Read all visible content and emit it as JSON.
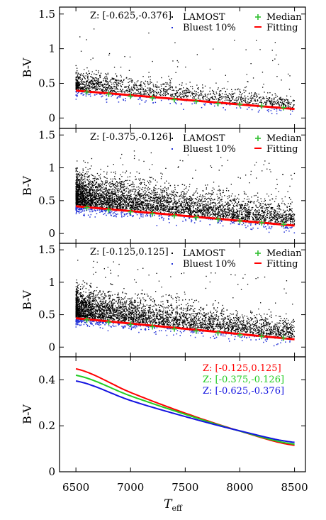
{
  "chart_data": [
    {
      "type": "scatter",
      "panel": 1,
      "annotation": "Z: [-0.625,-0.376]",
      "ylabel": "B-V",
      "xlim": [
        6350,
        8600
      ],
      "ylim": [
        -0.15,
        1.6
      ],
      "yticks": [
        0,
        0.5,
        1,
        1.5
      ],
      "ytick_labels": [
        "0",
        "0.5",
        "1",
        "1.5"
      ],
      "xticks": [
        6500,
        7000,
        7500,
        8000,
        8500
      ],
      "legend": {
        "placement": "top-right",
        "entries": [
          "LAMOST",
          "Bluest 10%",
          "Median",
          "Fitting"
        ]
      },
      "series": [
        {
          "name": "LAMOST",
          "color": "#000000",
          "density": 1400,
          "upper_spread": 0.12,
          "sparse_points": 60
        },
        {
          "name": "Bluest 10%",
          "color": "#1f2fd6",
          "density": 140
        },
        {
          "name": "Median",
          "color": "#2fbf2f",
          "x": [
            6600,
            6800,
            7000,
            7200,
            7400,
            7600,
            7800,
            8000,
            8200,
            8400
          ],
          "y": [
            0.375,
            0.345,
            0.315,
            0.29,
            0.265,
            0.24,
            0.21,
            0.195,
            0.175,
            0.15
          ]
        },
        {
          "name": "Fitting",
          "color": "#ff0000",
          "x_range": [
            6500,
            8500
          ],
          "y_range": [
            0.395,
            0.13
          ]
        }
      ]
    },
    {
      "type": "scatter",
      "panel": 2,
      "annotation": "Z: [-0.375,-0.126]",
      "ylabel": "B-V",
      "xlim": [
        6350,
        8600
      ],
      "ylim": [
        -0.15,
        1.6
      ],
      "yticks": [
        0,
        0.5,
        1,
        1.5
      ],
      "ytick_labels": [
        "0",
        "0.5",
        "1",
        "1.5"
      ],
      "xticks": [
        6500,
        7000,
        7500,
        8000,
        8500
      ],
      "legend": {
        "placement": "top-right",
        "entries": [
          "LAMOST",
          "Bluest 10%",
          "Median",
          "Fitting"
        ]
      },
      "series": [
        {
          "name": "LAMOST",
          "color": "#000000",
          "density": 4200,
          "upper_spread": 0.22,
          "sparse_points": 120
        },
        {
          "name": "Bluest 10%",
          "color": "#1f2fd6",
          "density": 320
        },
        {
          "name": "Median",
          "color": "#2fbf2f",
          "x": [
            6600,
            6800,
            7000,
            7200,
            7400,
            7600,
            7800,
            8000,
            8200,
            8400
          ],
          "y": [
            0.395,
            0.36,
            0.33,
            0.3,
            0.27,
            0.245,
            0.215,
            0.19,
            0.165,
            0.14
          ]
        },
        {
          "name": "Fitting",
          "color": "#ff0000",
          "x_range": [
            6500,
            8500
          ],
          "y_range": [
            0.415,
            0.12
          ]
        }
      ]
    },
    {
      "type": "scatter",
      "panel": 3,
      "annotation": "Z: [-0.125,0.125]",
      "ylabel": "B-V",
      "xlim": [
        6350,
        8600
      ],
      "ylim": [
        -0.15,
        1.6
      ],
      "yticks": [
        0,
        0.5,
        1,
        1.5
      ],
      "ytick_labels": [
        "0",
        "0.5",
        "1",
        "1.5"
      ],
      "xticks": [
        6500,
        7000,
        7500,
        8000,
        8500
      ],
      "legend": {
        "placement": "top-right",
        "entries": [
          "LAMOST",
          "Bluest 10%",
          "Median",
          "Fitting"
        ]
      },
      "series": [
        {
          "name": "LAMOST",
          "color": "#000000",
          "density": 3600,
          "upper_spread": 0.2,
          "sparse_points": 100
        },
        {
          "name": "Bluest 10%",
          "color": "#1f2fd6",
          "density": 280
        },
        {
          "name": "Median",
          "color": "#2fbf2f",
          "x": [
            6600,
            6800,
            7000,
            7200,
            7400,
            7600,
            7800,
            8000,
            8200,
            8400
          ],
          "y": [
            0.42,
            0.385,
            0.35,
            0.315,
            0.28,
            0.25,
            0.22,
            0.19,
            0.165,
            0.14
          ]
        },
        {
          "name": "Fitting",
          "color": "#ff0000",
          "x_range": [
            6500,
            8500
          ],
          "y_range": [
            0.445,
            0.12
          ]
        }
      ]
    },
    {
      "type": "line",
      "panel": 4,
      "xlabel": "T_eff",
      "ylabel": "B-V",
      "xlim": [
        6350,
        8600
      ],
      "ylim": [
        0,
        0.5
      ],
      "yticks": [
        0,
        0.2,
        0.4
      ],
      "ytick_labels": [
        "0",
        "0.2",
        "0.4"
      ],
      "xticks": [
        6500,
        7000,
        7500,
        8000,
        8500
      ],
      "xtick_labels": [
        "6500",
        "7000",
        "7500",
        "8000",
        "8500"
      ],
      "legend": {
        "placement": "top-right"
      },
      "series": [
        {
          "name": "Z: [-0.125,0.125]",
          "color": "#ff0000",
          "x": [
            6500,
            7000,
            7500,
            8000,
            8500
          ],
          "y": [
            0.448,
            0.345,
            0.255,
            0.177,
            0.115
          ]
        },
        {
          "name": "Z: [-0.375,-0.126]",
          "color": "#22cc22",
          "x": [
            6500,
            7000,
            7500,
            8000,
            8500
          ],
          "y": [
            0.42,
            0.33,
            0.25,
            0.177,
            0.12
          ]
        },
        {
          "name": "Z: [-0.625,-0.376]",
          "color": "#1414e0",
          "x": [
            6500,
            7000,
            7500,
            8000,
            8500
          ],
          "y": [
            0.395,
            0.31,
            0.24,
            0.178,
            0.128
          ]
        }
      ]
    }
  ]
}
